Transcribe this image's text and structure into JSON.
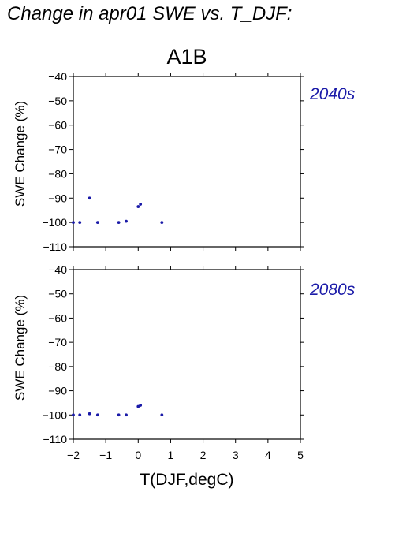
{
  "page": {
    "title": "Change in apr01 SWE vs. T_DJF:"
  },
  "chart_data": {
    "type": "scatter",
    "scenario": "A1B",
    "xlabel": "T(DJF,degC)",
    "ylabel": "SWE Change (%)",
    "xlim": [
      -2,
      5
    ],
    "ylim": [
      -110,
      -40
    ],
    "x_ticks": [
      -2,
      -1,
      0,
      1,
      2,
      3,
      4,
      5
    ],
    "y_ticks": [
      -110,
      -100,
      -90,
      -80,
      -70,
      -60,
      -50,
      -40
    ],
    "grid": false,
    "point_color": "#1a1aa8",
    "panel_label_color": "#1a1aa8",
    "panels": [
      {
        "label": "2040s",
        "points": [
          {
            "x": -2.0,
            "y": -100
          },
          {
            "x": -1.8,
            "y": -100
          },
          {
            "x": -1.5,
            "y": -90
          },
          {
            "x": -1.25,
            "y": -100
          },
          {
            "x": -0.6,
            "y": -100
          },
          {
            "x": -0.37,
            "y": -99.5
          },
          {
            "x": 0.0,
            "y": -93.5
          },
          {
            "x": 0.07,
            "y": -92.5
          },
          {
            "x": 0.73,
            "y": -100
          }
        ]
      },
      {
        "label": "2080s",
        "points": [
          {
            "x": -2.0,
            "y": -100
          },
          {
            "x": -1.8,
            "y": -100
          },
          {
            "x": -1.5,
            "y": -99.5
          },
          {
            "x": -1.25,
            "y": -100
          },
          {
            "x": -0.6,
            "y": -100
          },
          {
            "x": -0.37,
            "y": -100
          },
          {
            "x": 0.0,
            "y": -96.5
          },
          {
            "x": 0.07,
            "y": -96
          },
          {
            "x": 0.73,
            "y": -100
          }
        ]
      }
    ]
  }
}
